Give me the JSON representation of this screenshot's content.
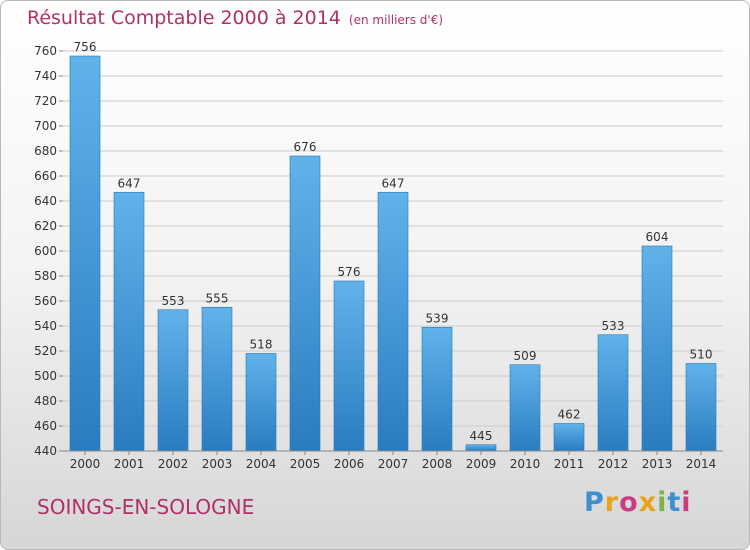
{
  "title": {
    "main": "Résultat Comptable 2000 à 2014",
    "unit": "(en milliers d'€)"
  },
  "commune": "SOINGS-EN-SOLOGNE",
  "logo": [
    "P",
    "r",
    "o",
    "x",
    "i",
    "t",
    "i"
  ],
  "colors": {
    "title": "#b0306a",
    "bar_top": "#62b2ea",
    "bar_bottom": "#2a7cc0",
    "grid": "#cccccc"
  },
  "chart_data": {
    "type": "bar",
    "title": "Résultat Comptable 2000 à 2014",
    "xlabel": "",
    "ylabel": "",
    "categories": [
      "2000",
      "2001",
      "2002",
      "2003",
      "2004",
      "2005",
      "2006",
      "2007",
      "2008",
      "2009",
      "2010",
      "2011",
      "2012",
      "2013",
      "2014"
    ],
    "values": [
      756,
      647,
      553,
      555,
      518,
      676,
      576,
      647,
      539,
      445,
      509,
      462,
      533,
      604,
      510
    ],
    "ylim": [
      440,
      760
    ],
    "yticks": [
      440,
      460,
      480,
      500,
      520,
      540,
      560,
      580,
      600,
      620,
      640,
      660,
      680,
      700,
      720,
      740,
      760
    ],
    "grid": true,
    "legend": "none"
  }
}
